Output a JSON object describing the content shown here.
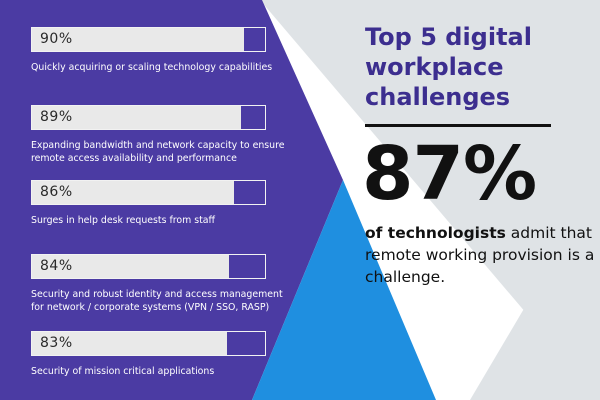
{
  "colors": {
    "purple": "#4b3ba3",
    "teal": "#1f8fe0",
    "light_gray": "#e9e9e9",
    "title_purple": "#3c2e8f"
  },
  "chart_data": {
    "type": "bar",
    "categories": [
      "Quickly acquiring or scaling technology capabilities",
      "Expanding bandwidth and network capacity to ensure remote access availability and performance",
      "Surges in help desk requests from staff",
      "Security and robust identity and access management for network / corporate systems (VPN / SSO, RASP)",
      "Security of mission critical applications"
    ],
    "values": [
      90,
      89,
      86,
      84,
      83
    ],
    "value_labels": [
      "90%",
      "89%",
      "86%",
      "84%",
      "83%"
    ],
    "xlim": [
      0,
      100
    ],
    "title": "Top 5 digital workplace challenges"
  },
  "stat": {
    "value": "87%",
    "bold_lead": "of technologists",
    "text": " admit that remote working provision is a challenge."
  }
}
